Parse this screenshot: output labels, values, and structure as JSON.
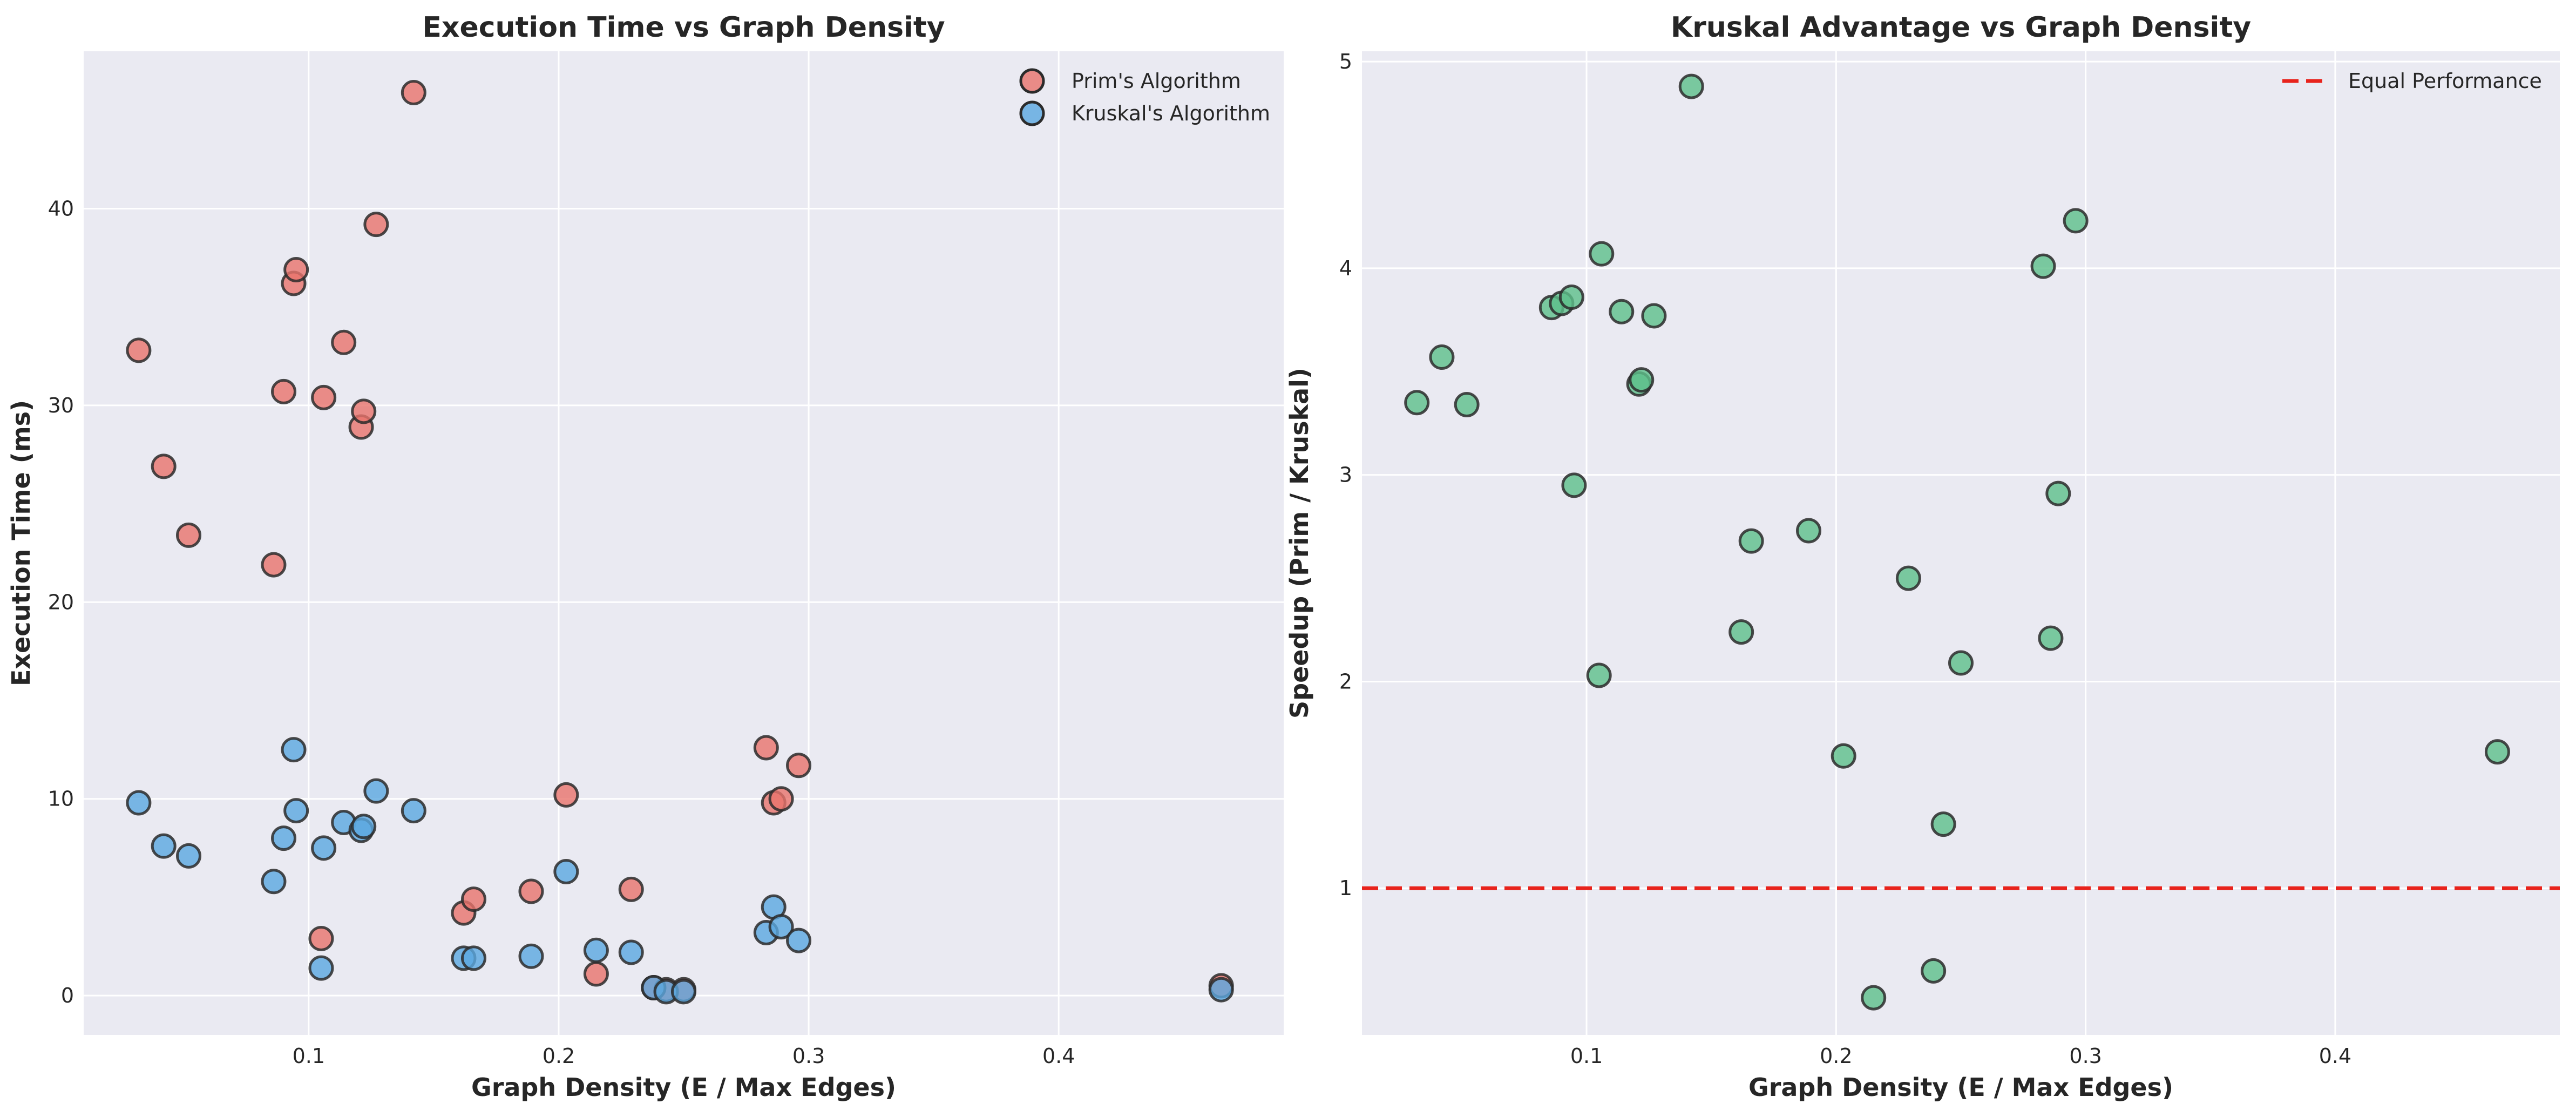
{
  "chart_data": [
    {
      "type": "scatter",
      "title": "Execution Time vs Graph Density",
      "xlabel": "Graph Density (E / Max Edges)",
      "ylabel": "Execution Time (ms)",
      "xlim": [
        0.01,
        0.49
      ],
      "ylim": [
        -2,
        48
      ],
      "xticks": [
        0.1,
        0.2,
        0.3,
        0.4
      ],
      "xtick_labels": [
        "0.1",
        "0.2",
        "0.3",
        "0.4"
      ],
      "yticks": [
        0,
        10,
        20,
        30,
        40
      ],
      "ytick_labels": [
        "0",
        "10",
        "20",
        "30",
        "40"
      ],
      "grid": true,
      "legend": "top-right",
      "series": [
        {
          "name": "Prim's Algorithm",
          "color": "#e8736c",
          "x": [
            0.032,
            0.042,
            0.052,
            0.086,
            0.09,
            0.094,
            0.095,
            0.105,
            0.106,
            0.114,
            0.121,
            0.122,
            0.127,
            0.142,
            0.162,
            0.166,
            0.189,
            0.203,
            0.215,
            0.229,
            0.238,
            0.243,
            0.25,
            0.283,
            0.286,
            0.289,
            0.296,
            0.465
          ],
          "y": [
            32.8,
            26.9,
            23.4,
            21.9,
            30.7,
            36.2,
            36.9,
            2.9,
            30.4,
            33.2,
            28.9,
            29.7,
            39.2,
            45.9,
            4.2,
            4.9,
            5.3,
            10.2,
            1.1,
            5.4,
            0.4,
            0.3,
            0.3,
            12.6,
            9.8,
            10.0,
            11.7,
            0.5
          ]
        },
        {
          "name": "Kruskal's Algorithm",
          "color": "#5aa7e0",
          "x": [
            0.032,
            0.042,
            0.052,
            0.086,
            0.09,
            0.094,
            0.095,
            0.105,
            0.106,
            0.114,
            0.121,
            0.122,
            0.127,
            0.142,
            0.162,
            0.166,
            0.189,
            0.203,
            0.215,
            0.229,
            0.238,
            0.243,
            0.25,
            0.283,
            0.286,
            0.289,
            0.296,
            0.465
          ],
          "y": [
            9.8,
            7.6,
            7.1,
            5.8,
            8.0,
            12.5,
            9.4,
            1.4,
            7.5,
            8.8,
            8.4,
            8.6,
            10.4,
            9.4,
            1.9,
            1.9,
            2.0,
            6.3,
            2.3,
            2.2,
            0.4,
            0.2,
            0.2,
            3.2,
            4.5,
            3.5,
            2.8,
            0.3
          ]
        }
      ]
    },
    {
      "type": "scatter",
      "title": "Kruskal Advantage vs Graph Density",
      "xlabel": "Graph Density (E / Max Edges)",
      "ylabel": "Speedup (Prim / Kruskal)",
      "xlim": [
        0.01,
        0.49
      ],
      "ylim": [
        0.29,
        5.05
      ],
      "xticks": [
        0.1,
        0.2,
        0.3,
        0.4
      ],
      "xtick_labels": [
        "0.1",
        "0.2",
        "0.3",
        "0.4"
      ],
      "yticks": [
        1,
        2,
        3,
        4,
        5
      ],
      "ytick_labels": [
        "1",
        "2",
        "3",
        "4",
        "5"
      ],
      "grid": true,
      "legend": "top-right",
      "series": [
        {
          "name": "",
          "color": "#5cbf8a",
          "x": [
            0.032,
            0.042,
            0.052,
            0.086,
            0.09,
            0.094,
            0.095,
            0.105,
            0.106,
            0.114,
            0.121,
            0.122,
            0.127,
            0.142,
            0.162,
            0.166,
            0.189,
            0.203,
            0.215,
            0.229,
            0.239,
            0.243,
            0.25,
            0.283,
            0.286,
            0.289,
            0.296,
            0.465
          ],
          "y": [
            3.35,
            3.57,
            3.34,
            3.81,
            3.83,
            3.86,
            2.95,
            2.03,
            4.07,
            3.79,
            3.44,
            3.46,
            3.77,
            4.88,
            2.24,
            2.68,
            2.73,
            1.64,
            0.47,
            2.5,
            0.6,
            1.31,
            2.09,
            4.01,
            2.21,
            2.91,
            4.23,
            1.66
          ]
        }
      ],
      "reference_line": {
        "y": 1,
        "label": "Equal Performance",
        "color": "#e8231c"
      }
    }
  ]
}
